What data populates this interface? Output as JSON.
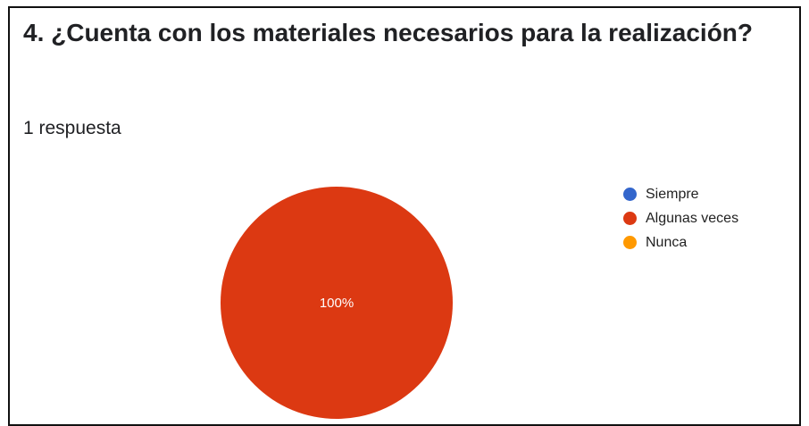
{
  "card": {
    "title": "4. ¿Cuenta con los materiales necesarios para la realización?",
    "response_count": "1 respuesta"
  },
  "chart_data": {
    "type": "pie",
    "categories": [
      "Siempre",
      "Algunas veces",
      "Nunca"
    ],
    "values": [
      0,
      1,
      0
    ],
    "slice_labels": [
      "",
      "100%",
      ""
    ],
    "colors": [
      "#3366cc",
      "#dc3912",
      "#ff9900"
    ],
    "legend_position": "right"
  }
}
